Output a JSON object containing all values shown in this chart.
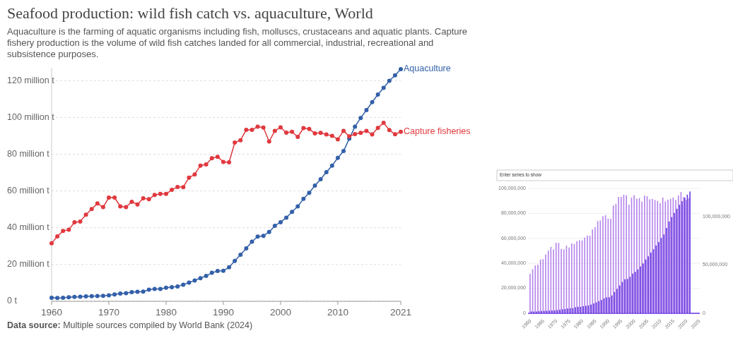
{
  "chart_data": [
    {
      "type": "line",
      "title": "Seafood production: wild fish catch vs. aquaculture, World",
      "subtitle": "Aquaculture is the farming of aquatic organisms including fish, molluscs, crustaceans and aquatic plants. Capture fishery production is the volume of wild fish catches landed for all commercial, industrial, recreational and subsistence purposes.",
      "x": [
        1960,
        1961,
        1962,
        1963,
        1964,
        1965,
        1966,
        1967,
        1968,
        1969,
        1970,
        1971,
        1972,
        1973,
        1974,
        1975,
        1976,
        1977,
        1978,
        1979,
        1980,
        1981,
        1982,
        1983,
        1984,
        1985,
        1986,
        1987,
        1988,
        1989,
        1990,
        1991,
        1992,
        1993,
        1994,
        1995,
        1996,
        1997,
        1998,
        1999,
        2000,
        2001,
        2002,
        2003,
        2004,
        2005,
        2006,
        2007,
        2008,
        2009,
        2010,
        2011,
        2012,
        2013,
        2014,
        2015,
        2016,
        2017,
        2018,
        2019,
        2020,
        2021
      ],
      "series": [
        {
          "name": "Aquaculture",
          "color": "#3360a9",
          "values": [
            1.9,
            1.8,
            1.9,
            2.2,
            2.4,
            2.5,
            2.7,
            2.8,
            2.9,
            3.0,
            3.3,
            3.7,
            4.2,
            4.4,
            5.0,
            5.2,
            5.3,
            6.3,
            6.7,
            6.7,
            7.4,
            7.7,
            8.1,
            9.0,
            10.2,
            11.3,
            12.6,
            13.8,
            15.5,
            16.5,
            16.6,
            18.5,
            22.0,
            25.3,
            28.8,
            32.4,
            35.2,
            35.6,
            37.7,
            41.1,
            43.0,
            45.5,
            48.6,
            51.6,
            55.7,
            59.0,
            62.9,
            66.4,
            70.2,
            73.8,
            78.0,
            81.7,
            88.4,
            95.0,
            99.7,
            104.0,
            108.3,
            112.4,
            116.1,
            119.9,
            122.9,
            126.2
          ]
        },
        {
          "name": "Capture fisheries",
          "color": "#e0393e",
          "values": [
            31.6,
            35.3,
            38.3,
            38.9,
            43.0,
            43.4,
            47.1,
            50.2,
            53.2,
            51.2,
            56.4,
            56.4,
            51.6,
            51.2,
            54.1,
            52.7,
            56.0,
            55.5,
            57.8,
            58.4,
            58.4,
            60.6,
            62.2,
            62.1,
            67.2,
            69.0,
            73.8,
            74.4,
            77.8,
            78.6,
            75.8,
            75.6,
            86.3,
            87.6,
            93.2,
            93.2,
            95.0,
            94.5,
            86.9,
            92.7,
            94.6,
            91.7,
            92.2,
            89.4,
            94.2,
            93.7,
            91.3,
            91.6,
            90.7,
            90.0,
            88.1,
            92.7,
            89.7,
            90.9,
            91.6,
            92.7,
            90.7,
            94.3,
            97.1,
            93.1,
            90.8,
            92.2
          ]
        }
      ],
      "xlim": [
        1960,
        2021
      ],
      "xticks": [
        1960,
        1970,
        1980,
        1990,
        2000,
        2010,
        2021
      ],
      "ylim": [
        0,
        127
      ],
      "yticks": [
        {
          "value": 0,
          "label": "0 t"
        },
        {
          "value": 20,
          "label": "20 million t"
        },
        {
          "value": 40,
          "label": "40 million t"
        },
        {
          "value": 60,
          "label": "60 million t"
        },
        {
          "value": 80,
          "label": "80 million t"
        },
        {
          "value": 100,
          "label": "100 million t"
        },
        {
          "value": 120,
          "label": "120 million t"
        }
      ],
      "grid": "y",
      "marker": "circle",
      "line_style": "solid",
      "annotations": [
        "Data source: Multiple sources compiled by World Bank (2024)"
      ]
    },
    {
      "type": "bar",
      "x": [
        1960,
        1961,
        1962,
        1963,
        1964,
        1965,
        1966,
        1967,
        1968,
        1969,
        1970,
        1971,
        1972,
        1973,
        1974,
        1975,
        1976,
        1977,
        1978,
        1979,
        1980,
        1981,
        1982,
        1983,
        1984,
        1985,
        1986,
        1987,
        1988,
        1989,
        1990,
        1991,
        1992,
        1993,
        1994,
        1995,
        1996,
        1997,
        1998,
        1999,
        2000,
        2001,
        2002,
        2003,
        2004,
        2005,
        2006,
        2007,
        2008,
        2009,
        2010,
        2011,
        2012,
        2013,
        2014,
        2015,
        2016,
        2017,
        2018,
        2019,
        2020,
        2021
      ],
      "series": [
        {
          "color": "#b482ec",
          "values": [
            31600000,
            35300000,
            38300000,
            38900000,
            43000000,
            43400000,
            47100000,
            50200000,
            53200000,
            51200000,
            56400000,
            56400000,
            51600000,
            51200000,
            54100000,
            52700000,
            56000000,
            55500000,
            57800000,
            58400000,
            58400000,
            60600000,
            62200000,
            62100000,
            67200000,
            69000000,
            73800000,
            74400000,
            77800000,
            78600000,
            75800000,
            75600000,
            86300000,
            87600000,
            93200000,
            93200000,
            95000000,
            94500000,
            86900000,
            92700000,
            94600000,
            91700000,
            92200000,
            89400000,
            94200000,
            93700000,
            91300000,
            91600000,
            90700000,
            90000000,
            88100000,
            92700000,
            89700000,
            90900000,
            91600000,
            92700000,
            90700000,
            94300000,
            97100000,
            93100000,
            90800000,
            92200000
          ]
        },
        {
          "color": "#6236e0",
          "axis": "y2",
          "values": [
            1900000,
            1800000,
            1900000,
            2200000,
            2400000,
            2500000,
            2700000,
            2800000,
            2900000,
            3000000,
            3300000,
            3700000,
            4200000,
            4400000,
            5000000,
            5200000,
            5300000,
            6300000,
            6700000,
            6700000,
            7400000,
            7700000,
            8100000,
            9000000,
            10200000,
            11300000,
            12600000,
            13800000,
            15500000,
            16500000,
            16600000,
            18500000,
            22000000,
            25300000,
            28800000,
            32400000,
            35200000,
            35600000,
            37700000,
            41100000,
            43000000,
            45500000,
            48600000,
            51600000,
            55700000,
            59000000,
            62900000,
            66400000,
            70200000,
            73800000,
            78000000,
            81700000,
            88400000,
            95000000,
            99700000,
            104000000,
            108300000,
            112400000,
            116100000,
            119900000,
            122900000,
            126200000
          ]
        }
      ],
      "xlim": [
        1959,
        2025
      ],
      "xticks": [
        1960,
        1965,
        1970,
        1975,
        1980,
        1985,
        1990,
        1995,
        2000,
        2005,
        2010,
        2015,
        2020,
        2025
      ],
      "ylim": [
        0,
        100000000
      ],
      "yticks": [
        0,
        {
          "value": 20000000,
          "label": "20,000,000"
        },
        {
          "value": 40000000,
          "label": "40,000,000"
        },
        {
          "value": 60000000,
          "label": "60,000,000"
        },
        {
          "value": 80000000,
          "label": "80,000,000"
        },
        {
          "value": 100000000,
          "label": "100,000,000"
        }
      ],
      "y2lim": [
        0,
        129400000
      ],
      "y2ticks": [
        0,
        {
          "value": 50000000,
          "label": "50,000,000"
        },
        {
          "value": 100000000,
          "label": "100,000,000"
        }
      ],
      "grid": "y",
      "annotations": [
        "Enter series to show"
      ]
    }
  ]
}
